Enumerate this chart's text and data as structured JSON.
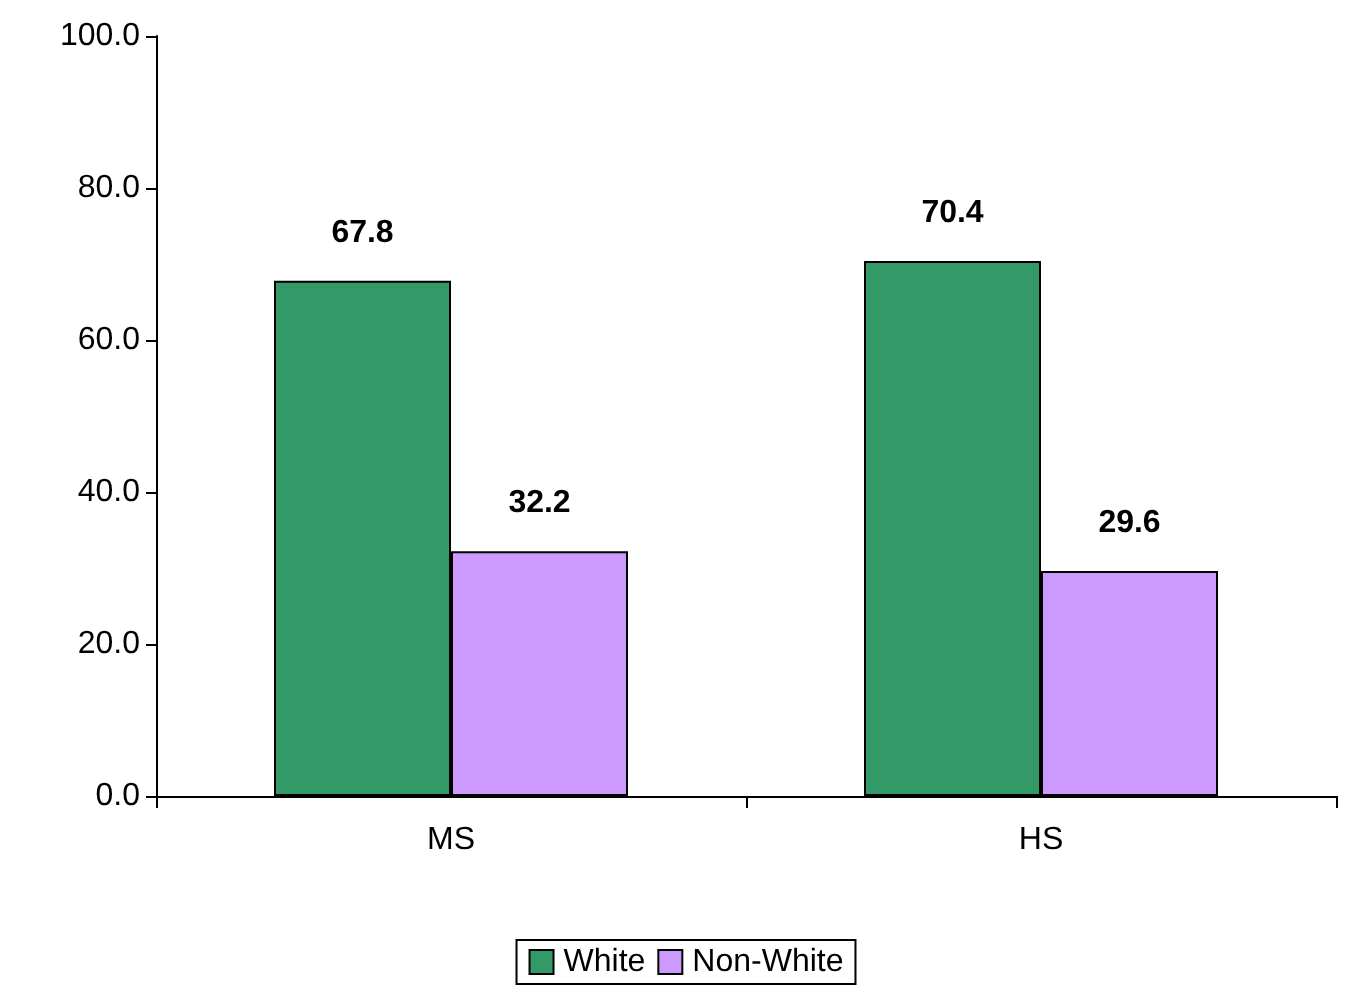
{
  "chart_data": {
    "type": "bar",
    "categories": [
      "MS",
      "HS"
    ],
    "series": [
      {
        "name": "White",
        "color": "#339966",
        "values": [
          67.8,
          70.4
        ]
      },
      {
        "name": "Non-White",
        "color": "#cc99ff",
        "values": [
          32.2,
          29.6
        ]
      }
    ],
    "ylim": [
      0,
      100
    ],
    "yticks": [
      {
        "value": 0,
        "label": "0.0"
      },
      {
        "value": 20,
        "label": "20.0"
      },
      {
        "value": 40,
        "label": "40.0"
      },
      {
        "value": 60,
        "label": "60.0"
      },
      {
        "value": 80,
        "label": "80.0"
      },
      {
        "value": 100,
        "label": "100.0"
      }
    ],
    "data_labels": true,
    "grid": false,
    "legend": "bottom"
  }
}
